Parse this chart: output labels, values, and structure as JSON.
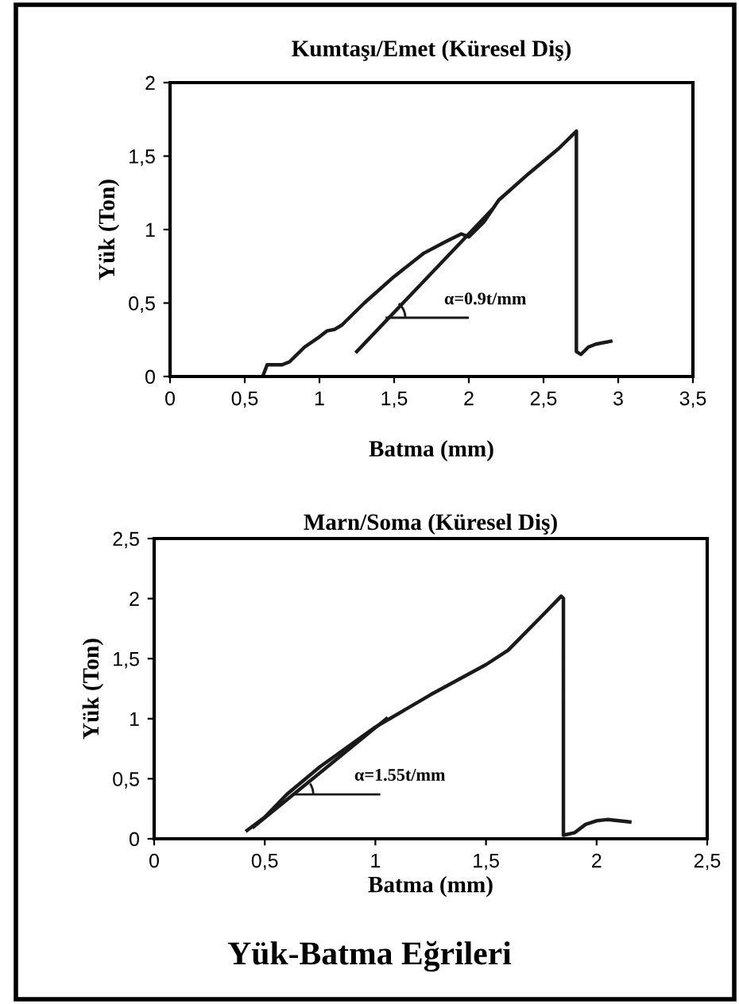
{
  "chart_data": [
    {
      "type": "line",
      "title": "Kumtaşı/Emet (Küresel Diş)",
      "xlabel": "Batma (mm)",
      "ylabel": "Yük (Ton)",
      "xlim": [
        0,
        3.5
      ],
      "ylim": [
        0,
        2
      ],
      "xticks": [
        0,
        {
          "value": 0.5,
          "label": "0,5"
        },
        1,
        {
          "value": 1.5,
          "label": "1,5"
        },
        2,
        {
          "value": 2.5,
          "label": "2,5"
        },
        3,
        {
          "value": 3.5,
          "label": "3,5"
        }
      ],
      "yticks": [
        0,
        {
          "value": 0.5,
          "label": "0,5"
        },
        1,
        {
          "value": 1.5,
          "label": "1,5"
        },
        2
      ],
      "grid": false,
      "legend": false,
      "marker": "none",
      "line_style": "solid",
      "series": [
        {
          "color": "#1a1a1a",
          "x": [
            0.62,
            0.65,
            0.75,
            0.8,
            0.9,
            1.0,
            1.05,
            1.1,
            1.15,
            1.3,
            1.5,
            1.7,
            1.85,
            1.95,
            2.0,
            2.1,
            2.2,
            2.4,
            2.6,
            2.72,
            2.72,
            2.75,
            2.8,
            2.85,
            2.95
          ],
          "values": [
            0,
            0.08,
            0.08,
            0.1,
            0.2,
            0.27,
            0.31,
            0.32,
            0.35,
            0.5,
            0.68,
            0.84,
            0.92,
            0.97,
            0.95,
            1.05,
            1.2,
            1.38,
            1.55,
            1.67,
            0.17,
            0.15,
            0.2,
            0.22,
            0.24
          ]
        },
        {
          "type": "line",
          "color": "#1a1a1a",
          "x": [
            1.25,
            2.15
          ],
          "values": [
            0.17,
            1.13
          ]
        }
      ],
      "annotations": [
        {
          "text": "α=0.9t/mm",
          "x": 1.45,
          "y": 0.4
        }
      ]
    },
    {
      "type": "line",
      "title": "Marn/Soma (Küresel Diş)",
      "xlabel": "Batma (mm)",
      "ylabel": "Yük (Ton)",
      "xlim": [
        0,
        2.5
      ],
      "ylim": [
        0,
        2.5
      ],
      "xticks": [
        0,
        {
          "value": 0.5,
          "label": "0,5"
        },
        1,
        {
          "value": 1.5,
          "label": "1,5"
        },
        2,
        {
          "value": 2.5,
          "label": "2,5"
        }
      ],
      "yticks": [
        0,
        {
          "value": 0.5,
          "label": "0,5"
        },
        1,
        {
          "value": 1.5,
          "label": "1,5"
        },
        2,
        {
          "value": 2.5,
          "label": "2,5"
        }
      ],
      "grid": false,
      "legend": false,
      "marker": "none",
      "line_style": "solid",
      "series": [
        {
          "color": "#1a1a1a",
          "x": [
            0.42,
            0.5,
            0.6,
            0.75,
            1.0,
            1.25,
            1.5,
            1.6,
            1.75,
            1.84,
            1.85,
            1.85,
            1.9,
            1.95,
            2.0,
            2.05,
            2.15
          ],
          "values": [
            0.07,
            0.18,
            0.37,
            0.6,
            0.93,
            1.2,
            1.45,
            1.57,
            1.85,
            2.02,
            2.0,
            0.03,
            0.05,
            0.12,
            0.15,
            0.16,
            0.14
          ]
        },
        {
          "type": "line",
          "color": "#1a1a1a",
          "x": [
            0.45,
            1.05
          ],
          "values": [
            0.1,
            1.0
          ]
        }
      ],
      "annotations": [
        {
          "text": "α=1.55t/mm",
          "x": 0.63,
          "y": 0.37
        },
        "Yük-Batma Eğrileri"
      ]
    }
  ]
}
